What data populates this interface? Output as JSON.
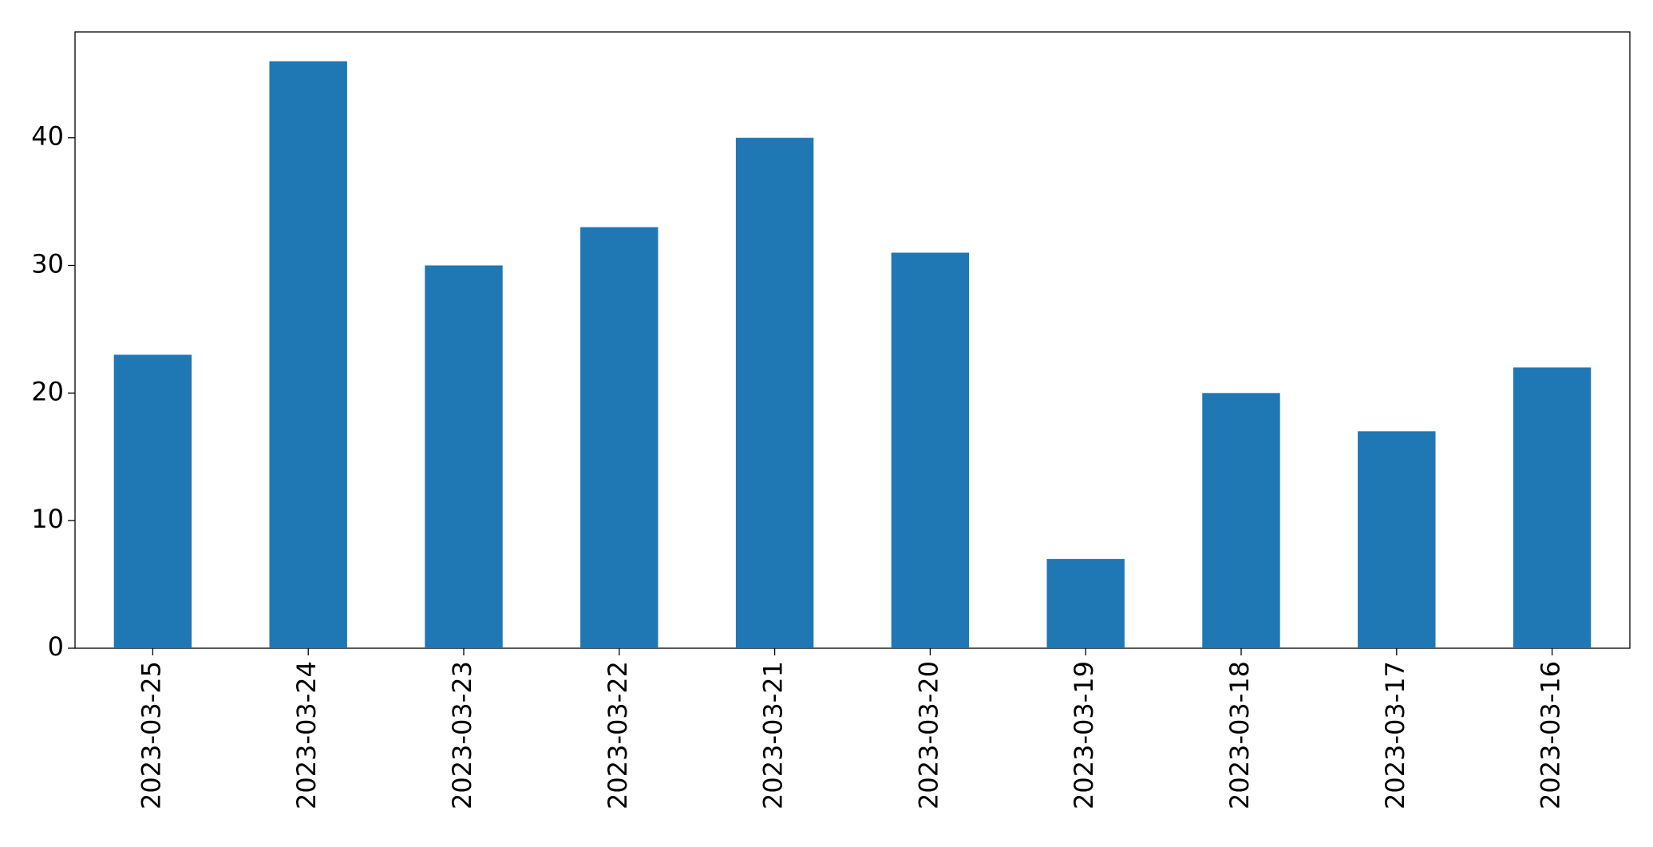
{
  "chart_data": {
    "type": "bar",
    "categories": [
      "2023-03-25",
      "2023-03-24",
      "2023-03-23",
      "2023-03-22",
      "2023-03-21",
      "2023-03-20",
      "2023-03-19",
      "2023-03-18",
      "2023-03-17",
      "2023-03-16"
    ],
    "values": [
      23,
      46,
      30,
      33,
      40,
      31,
      7,
      20,
      17,
      22
    ],
    "color": "#1f77b4",
    "ylim": [
      0,
      48.3
    ],
    "yticks": [
      0,
      10,
      20,
      30,
      40
    ],
    "grid": false
  }
}
